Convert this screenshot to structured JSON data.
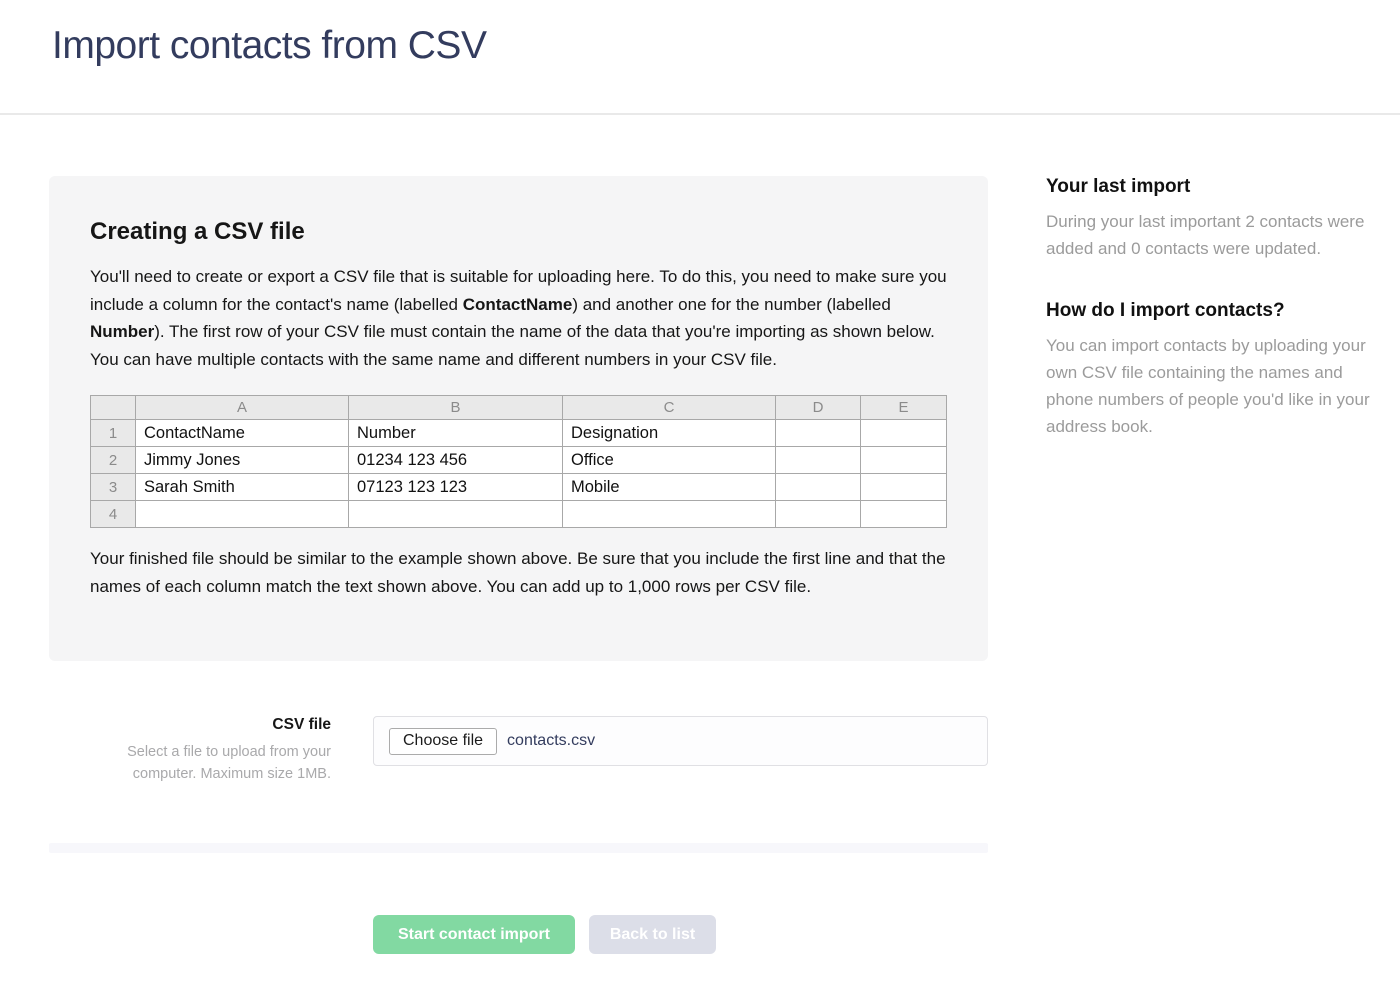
{
  "page": {
    "title": "Import contacts from CSV"
  },
  "panel": {
    "heading": "Creating a CSV file",
    "intro": {
      "part1": "You'll need to create or export a CSV file that is suitable for uploading here. To do this, you need to make sure you include a column for the contact's name (labelled ",
      "bold1": "ContactName",
      "part2": ") and another one for the number (labelled ",
      "bold2": "Number",
      "part3": "). The first row of your CSV file must contain the name of the data that you're importing as shown below. You can have multiple contacts with the same name and different numbers in your CSV file."
    },
    "footer_text": "Your finished file should be similar to the example shown above. Be sure that you include the first line and that the names of each column match the text shown above. You can add up to 1,000 rows per CSV file."
  },
  "spreadsheet": {
    "column_headers": [
      "A",
      "B",
      "C",
      "D",
      "E"
    ],
    "row_numbers": [
      "1",
      "2",
      "3",
      "4"
    ],
    "rows": [
      [
        "ContactName",
        "Number",
        "Designation",
        "",
        ""
      ],
      [
        "Jimmy Jones",
        "01234 123 456",
        "Office",
        "",
        ""
      ],
      [
        "Sarah Smith",
        "07123 123 123",
        "Mobile",
        "",
        ""
      ],
      [
        "",
        "",
        "",
        "",
        ""
      ]
    ]
  },
  "form": {
    "label": "CSV file",
    "help": "Select a file to upload from your computer. Maximum size 1MB.",
    "choose_file_label": "Choose file",
    "filename": "contacts.csv"
  },
  "actions": {
    "start_label": "Start contact import",
    "back_label": "Back to list"
  },
  "sidebar": {
    "last_import": {
      "heading": "Your last import",
      "text": "During your last important 2 contacts were added and 0 contacts were updated."
    },
    "how_to": {
      "heading": "How do I import contacts?",
      "text": "You can import contacts by uploading your own CSV file containing the names and phone numbers of people you'd like in your address book."
    }
  },
  "colors": {
    "title_navy": "#333c5e",
    "accent_green": "#82d9a2",
    "muted_button_gray": "#dcdee8",
    "panel_bg": "#f5f5f6"
  }
}
